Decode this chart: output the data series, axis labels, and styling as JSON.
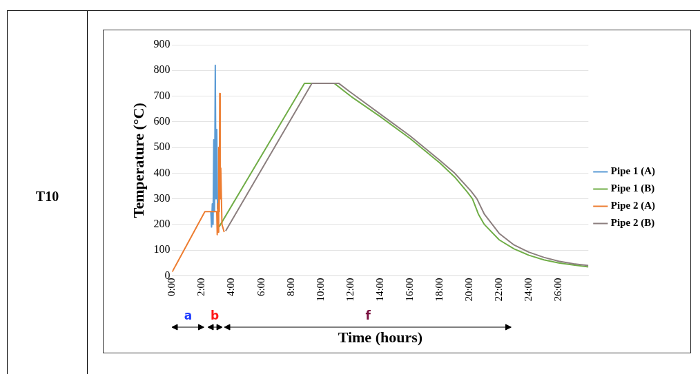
{
  "chart_data": {
    "type": "line",
    "xlabel": "Time (hours)",
    "ylabel": "Temperature (°C)",
    "annotations": [
      "T10",
      "a",
      "b",
      "f"
    ],
    "xlim": [
      0,
      28
    ],
    "ylim": [
      0,
      900
    ],
    "xticks": [
      {
        "value": 0,
        "label": "0:00"
      },
      {
        "value": 2,
        "label": "2:00"
      },
      {
        "value": 4,
        "label": "4:00"
      },
      {
        "value": 6,
        "label": "6:00"
      },
      {
        "value": 8,
        "label": "8:00"
      },
      {
        "value": 10,
        "label": "10:00"
      },
      {
        "value": 12,
        "label": "12:00"
      },
      {
        "value": 14,
        "label": "14:00"
      },
      {
        "value": 16,
        "label": "16:00"
      },
      {
        "value": 18,
        "label": "18:00"
      },
      {
        "value": 20,
        "label": "20:00"
      },
      {
        "value": 22,
        "label": "22:00"
      },
      {
        "value": 24,
        "label": "24:00"
      },
      {
        "value": 26,
        "label": "26:00"
      }
    ],
    "yticks": [
      0,
      100,
      200,
      300,
      400,
      500,
      600,
      700,
      800,
      900
    ],
    "grid": "y",
    "legend": "right",
    "marker": "none",
    "line_style": "solid",
    "series": [
      {
        "name": "Pipe 1 (A)",
        "color": "#5b9bd5",
        "x": [
          2.6,
          2.65,
          2.7,
          2.75,
          2.8,
          2.85,
          2.9,
          2.95,
          3.0,
          3.05
        ],
        "values": [
          250,
          190,
          280,
          200,
          530,
          250,
          820,
          300,
          570,
          260
        ]
      },
      {
        "name": "Pipe 1 (B)",
        "color": "#70ad47",
        "x": [
          3.15,
          8.9,
          10.9,
          12,
          14,
          16,
          18,
          19,
          19.8,
          20.2,
          20.6,
          21,
          22,
          23,
          24,
          25,
          26,
          27,
          28
        ],
        "values": [
          190,
          750,
          750,
          700,
          620,
          535,
          440,
          385,
          330,
          300,
          240,
          200,
          140,
          105,
          80,
          62,
          50,
          42,
          35
        ]
      },
      {
        "name": "Pipe 2 (A)",
        "color": "#ed7d31",
        "x": [
          0,
          2.2,
          3.0,
          3.03,
          3.07,
          3.1,
          3.13,
          3.17,
          3.2,
          3.23,
          3.27,
          3.3,
          3.35,
          3.5
        ],
        "values": [
          15,
          250,
          250,
          160,
          280,
          170,
          500,
          250,
          710,
          300,
          420,
          340,
          200,
          170
        ]
      },
      {
        "name": "Pipe 2 (B)",
        "color": "#8c7f7f",
        "x": [
          3.6,
          9.4,
          11.2,
          12,
          14,
          16,
          18,
          19,
          20.1,
          20.5,
          21,
          22,
          23,
          24,
          25,
          26,
          27,
          28
        ],
        "values": [
          175,
          750,
          750,
          715,
          630,
          545,
          450,
          400,
          330,
          300,
          240,
          165,
          120,
          92,
          72,
          57,
          47,
          40
        ]
      }
    ]
  }
}
